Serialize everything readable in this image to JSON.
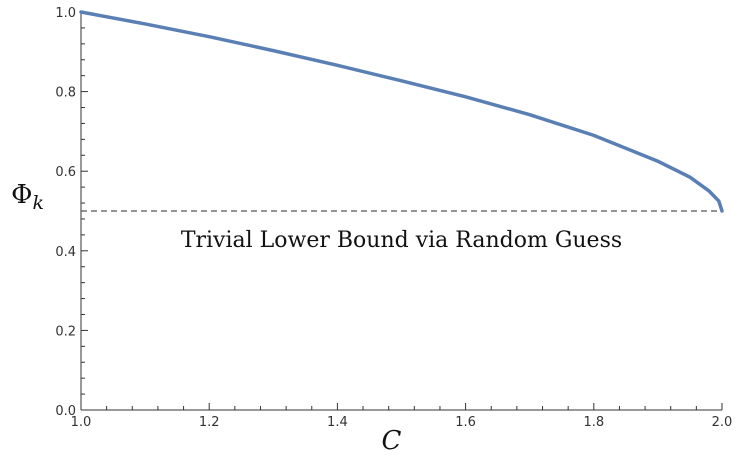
{
  "chart_data": {
    "type": "line",
    "xlabel": "C",
    "ylabel_main": "Φ",
    "ylabel_sub": "k",
    "xlim": [
      1.0,
      2.0
    ],
    "ylim": [
      0.0,
      1.0
    ],
    "x_ticks": [
      1.0,
      1.2,
      1.4,
      1.6,
      1.8,
      2.0
    ],
    "x_tick_labels": [
      "1.0",
      "1.2",
      "1.4",
      "1.6",
      "1.8",
      "2.0"
    ],
    "y_ticks": [
      0.0,
      0.2,
      0.4,
      0.6,
      0.8,
      1.0
    ],
    "y_tick_labels": [
      "0.0",
      "0.2",
      "0.4",
      "0.6",
      "0.8",
      "1.0"
    ],
    "grid": false,
    "series": [
      {
        "color": "#5a7fb5",
        "x": [
          1.0,
          1.1,
          1.2,
          1.3,
          1.4,
          1.5,
          1.6,
          1.7,
          1.8,
          1.9,
          1.95,
          1.98,
          1.995,
          2.0
        ],
        "y": [
          1.0,
          0.97,
          0.938,
          0.903,
          0.866,
          0.827,
          0.787,
          0.742,
          0.69,
          0.625,
          0.585,
          0.55,
          0.525,
          0.5
        ]
      }
    ],
    "reference_line": {
      "y": 0.5,
      "style": "dashed",
      "color": "#555555"
    },
    "annotation": {
      "text": "Trivial Lower Bound via Random Guess",
      "x": 1.5,
      "y": 0.43
    }
  }
}
